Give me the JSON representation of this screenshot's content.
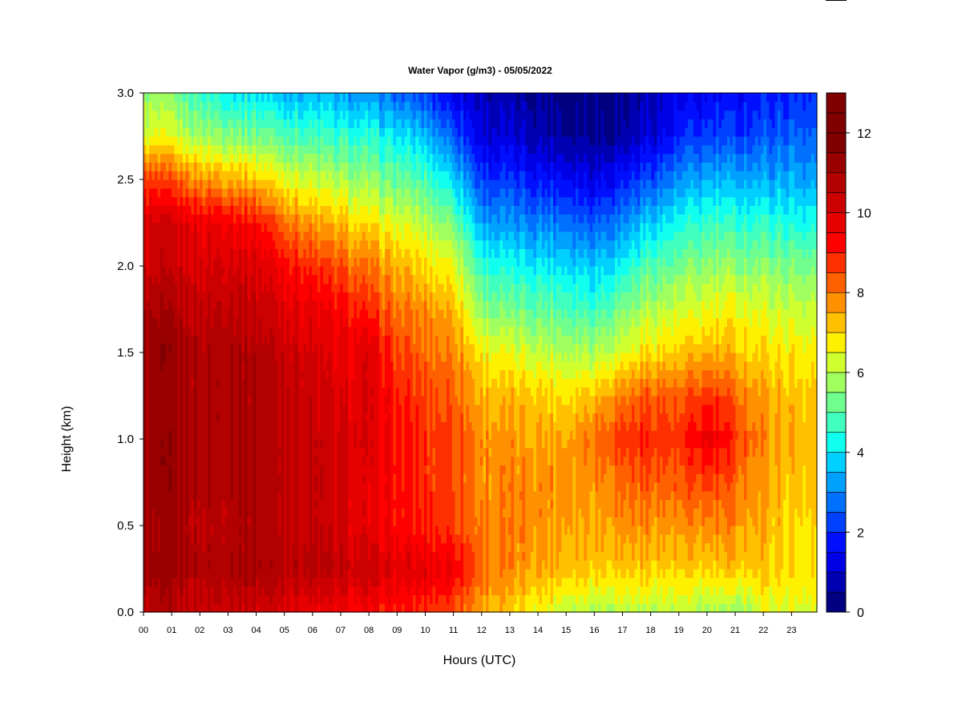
{
  "chart_data": {
    "type": "heatmap",
    "title": "Water Vapor (g/m3) - 05/05/2022",
    "xlabel": "Hours (UTC)",
    "ylabel": "Height (km)",
    "xlim": [
      0,
      23.9
    ],
    "ylim": [
      0,
      3.0
    ],
    "x_ticks": [
      0,
      1,
      2,
      3,
      4,
      5,
      6,
      7,
      8,
      9,
      10,
      11,
      12,
      13,
      14,
      15,
      16,
      17,
      18,
      19,
      20,
      21,
      22,
      23
    ],
    "x_tick_labels": [
      "00",
      "01",
      "02",
      "03",
      "04",
      "05",
      "06",
      "07",
      "08",
      "09",
      "10",
      "11",
      "12",
      "13",
      "14",
      "15",
      "16",
      "17",
      "18",
      "19",
      "20",
      "21",
      "22",
      "23"
    ],
    "y_ticks": [
      0.0,
      0.5,
      1.0,
      1.5,
      2.0,
      2.5,
      3.0
    ],
    "y_tick_labels": [
      "0.0",
      "0.5",
      "1.0",
      "1.5",
      "2.0",
      "2.5",
      "3.0"
    ],
    "colorbar": {
      "min": 0,
      "max": 13,
      "levels": 26,
      "ticks": [
        0,
        2,
        4,
        6,
        8,
        10,
        12
      ],
      "tick_labels": [
        "0",
        "2",
        "4",
        "6",
        "8",
        "10",
        "12"
      ],
      "colors": [
        "#000080",
        "#0000B3",
        "#0000E6",
        "#0010FF",
        "#0040FF",
        "#0070FF",
        "#00A0FF",
        "#00D0FF",
        "#10FFEF",
        "#40FFBF",
        "#70FF8F",
        "#A0FF5F",
        "#D0FF2F",
        "#FFF000",
        "#FFC000",
        "#FF9000",
        "#FF6000",
        "#FF3000",
        "#FF0000",
        "#E60000",
        "#CC0000",
        "#B30000",
        "#990000",
        "#800000",
        "#800000",
        "#800000"
      ]
    },
    "heights_km": [
      0.0,
      0.25,
      0.5,
      0.75,
      1.0,
      1.25,
      1.5,
      1.75,
      2.0,
      2.25,
      2.5,
      2.75,
      3.0
    ],
    "columns": [
      {
        "hour": 0,
        "values": [
          10.5,
          11.0,
          10.8,
          11.0,
          11.0,
          11.0,
          11.2,
          10.8,
          10.2,
          10.0,
          8.6,
          6.4,
          5.6
        ]
      },
      {
        "hour": 1,
        "values": [
          10.6,
          11.0,
          11.0,
          11.2,
          11.2,
          11.0,
          11.2,
          10.8,
          10.2,
          10.0,
          8.4,
          6.3,
          5.4
        ]
      },
      {
        "hour": 2,
        "values": [
          10.2,
          10.8,
          10.6,
          10.8,
          10.8,
          10.8,
          10.8,
          10.4,
          10.0,
          9.6,
          7.8,
          5.8,
          4.6
        ]
      },
      {
        "hour": 3,
        "values": [
          10.4,
          11.0,
          10.8,
          11.0,
          11.0,
          11.0,
          11.0,
          10.6,
          10.2,
          9.6,
          7.6,
          5.6,
          4.2
        ]
      },
      {
        "hour": 4,
        "values": [
          10.2,
          11.0,
          10.8,
          11.0,
          11.0,
          10.8,
          10.8,
          10.4,
          10.0,
          9.2,
          7.2,
          5.4,
          4.0
        ]
      },
      {
        "hour": 5,
        "values": [
          10.0,
          10.8,
          10.6,
          10.6,
          10.6,
          10.6,
          10.4,
          10.0,
          9.4,
          8.2,
          6.6,
          5.0,
          3.6
        ]
      },
      {
        "hour": 6,
        "values": [
          9.6,
          10.6,
          10.4,
          10.4,
          10.4,
          10.2,
          10.0,
          9.6,
          8.8,
          7.6,
          6.2,
          4.8,
          3.4
        ]
      },
      {
        "hour": 7,
        "values": [
          9.4,
          10.4,
          10.0,
          10.0,
          10.0,
          9.8,
          9.6,
          9.2,
          8.4,
          7.2,
          5.8,
          4.6,
          3.2
        ]
      },
      {
        "hour": 8,
        "values": [
          9.2,
          10.2,
          9.6,
          9.6,
          9.8,
          9.8,
          9.8,
          8.8,
          8.0,
          6.8,
          5.6,
          4.4,
          3.0
        ]
      },
      {
        "hour": 9,
        "values": [
          9.0,
          9.8,
          9.2,
          9.2,
          9.2,
          9.0,
          8.6,
          8.0,
          7.4,
          6.4,
          5.2,
          4.0,
          2.6
        ]
      },
      {
        "hour": 10,
        "values": [
          8.8,
          9.8,
          9.0,
          8.8,
          8.8,
          8.6,
          8.2,
          7.8,
          7.0,
          6.0,
          4.8,
          3.6,
          2.2
        ]
      },
      {
        "hour": 11,
        "values": [
          8.6,
          9.6,
          8.8,
          8.6,
          8.6,
          8.4,
          8.0,
          7.4,
          6.6,
          5.4,
          4.0,
          2.6,
          1.4
        ]
      },
      {
        "hour": 12,
        "values": [
          7.6,
          8.2,
          8.0,
          7.8,
          7.8,
          7.4,
          6.8,
          5.6,
          4.6,
          3.4,
          2.2,
          1.2,
          0.8
        ]
      },
      {
        "hour": 13,
        "values": [
          7.0,
          7.8,
          7.8,
          7.8,
          7.6,
          7.2,
          6.4,
          5.2,
          4.2,
          3.0,
          2.0,
          1.0,
          0.6
        ]
      },
      {
        "hour": 14,
        "values": [
          6.6,
          7.6,
          7.8,
          7.8,
          7.6,
          7.2,
          6.2,
          5.2,
          4.2,
          3.0,
          1.8,
          0.8,
          0.5
        ]
      },
      {
        "hour": 15,
        "values": [
          6.2,
          7.4,
          7.6,
          7.8,
          7.6,
          7.0,
          6.0,
          5.0,
          4.0,
          2.8,
          1.6,
          0.6,
          0.4
        ]
      },
      {
        "hour": 16,
        "values": [
          6.0,
          7.2,
          7.6,
          7.8,
          8.2,
          7.4,
          6.0,
          4.8,
          3.8,
          2.6,
          1.4,
          0.5,
          0.3
        ]
      },
      {
        "hour": 17,
        "values": [
          6.0,
          7.2,
          7.8,
          8.2,
          8.8,
          8.0,
          6.4,
          5.4,
          4.2,
          3.0,
          1.8,
          0.6,
          0.4
        ]
      },
      {
        "hour": 18,
        "values": [
          6.0,
          7.2,
          7.8,
          8.4,
          9.0,
          8.4,
          7.0,
          6.0,
          5.0,
          3.8,
          2.4,
          1.2,
          0.8
        ]
      },
      {
        "hour": 19,
        "values": [
          6.0,
          7.0,
          7.6,
          8.2,
          8.6,
          8.2,
          7.0,
          6.2,
          5.2,
          4.2,
          3.0,
          1.8,
          1.2
        ]
      },
      {
        "hour": 20,
        "values": [
          5.8,
          7.0,
          7.8,
          8.6,
          9.6,
          8.8,
          7.4,
          6.4,
          5.6,
          4.6,
          3.4,
          2.2,
          1.4
        ]
      },
      {
        "hour": 21,
        "values": [
          5.6,
          7.2,
          7.8,
          8.2,
          8.8,
          8.2,
          7.2,
          6.6,
          5.6,
          4.6,
          3.4,
          2.2,
          1.6
        ]
      },
      {
        "hour": 22,
        "values": [
          6.4,
          7.2,
          7.4,
          7.6,
          7.8,
          7.6,
          7.0,
          6.4,
          5.6,
          4.6,
          3.4,
          2.4,
          1.8
        ]
      },
      {
        "hour": 23,
        "values": [
          6.4,
          7.0,
          7.0,
          7.2,
          7.4,
          7.2,
          6.8,
          6.2,
          5.4,
          4.4,
          3.4,
          2.6,
          2.0
        ]
      }
    ]
  }
}
